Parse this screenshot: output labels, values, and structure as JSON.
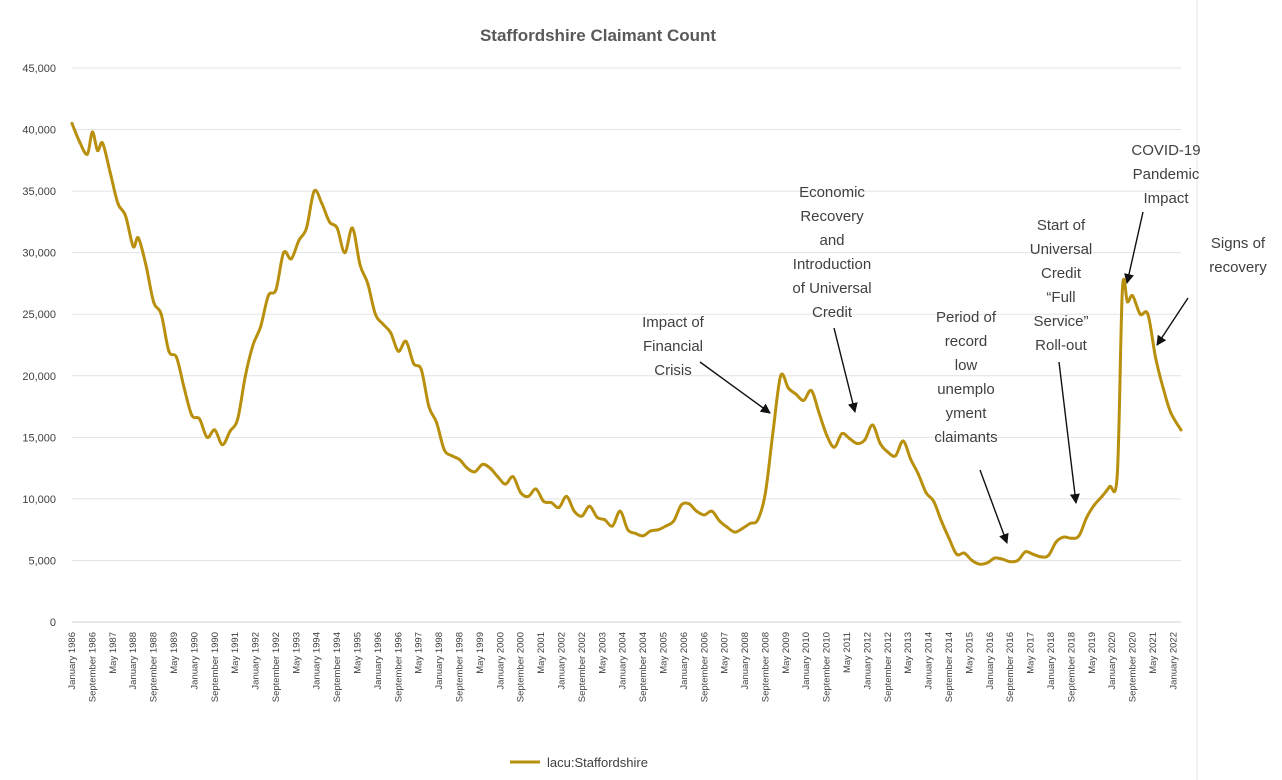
{
  "chart_data": {
    "type": "line",
    "title": "Staffordshire Claimant Count",
    "xlabel": "",
    "ylabel": "",
    "ylim": [
      0,
      45000
    ],
    "yticks": [
      0,
      5000,
      10000,
      15000,
      20000,
      25000,
      30000,
      35000,
      40000,
      45000
    ],
    "ytick_labels": [
      "0",
      "5,000",
      "10,000",
      "15,000",
      "20,000",
      "25,000",
      "30,000",
      "35,000",
      "40,000",
      "45,000"
    ],
    "xlim": [
      "January 1986",
      "April 2022"
    ],
    "xtick_labels": [
      "January 1986",
      "September 1986",
      "May 1987",
      "January 1988",
      "September 1988",
      "May 1989",
      "January 1990",
      "September 1990",
      "May 1991",
      "January 1992",
      "September 1992",
      "May 1993",
      "January 1994",
      "September 1994",
      "May 1995",
      "January 1996",
      "September 1996",
      "May 1997",
      "January 1998",
      "September 1998",
      "May 1999",
      "January 2000",
      "September 2000",
      "May 2001",
      "January 2002",
      "September 2002",
      "May 2003",
      "January 2004",
      "September 2004",
      "May 2005",
      "January 2006",
      "September 2006",
      "May 2007",
      "January 2008",
      "September 2008",
      "May 2009",
      "January 2010",
      "September 2010",
      "May 2011",
      "January 2012",
      "September 2012",
      "May 2013",
      "January 2014",
      "September 2014",
      "May 2015",
      "January 2016",
      "September 2016",
      "May 2017",
      "January 2018",
      "September 2018",
      "May 2019",
      "January 2020",
      "September 2020",
      "May 2021",
      "January 2022"
    ],
    "grid": true,
    "legend_position": "bottom",
    "series": [
      {
        "name": "lacu:Staffordshire",
        "color": "#b8900e",
        "points": [
          [
            "January 1986",
            40500
          ],
          [
            "April 1986",
            39000
          ],
          [
            "July 1986",
            38000
          ],
          [
            "September 1986",
            39800
          ],
          [
            "November 1986",
            38300
          ],
          [
            "January 1987",
            38900
          ],
          [
            "April 1987",
            36500
          ],
          [
            "July 1987",
            34000
          ],
          [
            "October 1987",
            33000
          ],
          [
            "January 1988",
            30500
          ],
          [
            "March 1988",
            31200
          ],
          [
            "June 1988",
            29000
          ],
          [
            "September 1988",
            26000
          ],
          [
            "December 1988",
            25000
          ],
          [
            "March 1989",
            22000
          ],
          [
            "June 1989",
            21500
          ],
          [
            "September 1989",
            19000
          ],
          [
            "December 1989",
            16800
          ],
          [
            "March 1990",
            16500
          ],
          [
            "June 1990",
            15000
          ],
          [
            "September 1990",
            15600
          ],
          [
            "December 1990",
            14400
          ],
          [
            "March 1991",
            15500
          ],
          [
            "June 1991",
            16500
          ],
          [
            "September 1991",
            20000
          ],
          [
            "December 1991",
            22500
          ],
          [
            "March 1992",
            24000
          ],
          [
            "June 1992",
            26500
          ],
          [
            "September 1992",
            27000
          ],
          [
            "December 1992",
            30000
          ],
          [
            "March 1993",
            29500
          ],
          [
            "June 1993",
            31000
          ],
          [
            "September 1993",
            32000
          ],
          [
            "December 1993",
            35000
          ],
          [
            "March 1994",
            34000
          ],
          [
            "June 1994",
            32500
          ],
          [
            "September 1994",
            32000
          ],
          [
            "December 1994",
            30000
          ],
          [
            "March 1995",
            32000
          ],
          [
            "June 1995",
            29000
          ],
          [
            "September 1995",
            27500
          ],
          [
            "December 1995",
            25000
          ],
          [
            "March 1996",
            24200
          ],
          [
            "June 1996",
            23500
          ],
          [
            "September 1996",
            22000
          ],
          [
            "December 1996",
            22800
          ],
          [
            "March 1997",
            21000
          ],
          [
            "June 1997",
            20500
          ],
          [
            "September 1997",
            17500
          ],
          [
            "December 1997",
            16200
          ],
          [
            "March 1998",
            14000
          ],
          [
            "June 1998",
            13500
          ],
          [
            "September 1998",
            13200
          ],
          [
            "December 1998",
            12500
          ],
          [
            "March 1999",
            12200
          ],
          [
            "June 1999",
            12800
          ],
          [
            "September 1999",
            12500
          ],
          [
            "December 1999",
            11800
          ],
          [
            "March 2000",
            11200
          ],
          [
            "June 2000",
            11800
          ],
          [
            "September 2000",
            10500
          ],
          [
            "December 2000",
            10200
          ],
          [
            "March 2001",
            10800
          ],
          [
            "June 2001",
            9800
          ],
          [
            "September 2001",
            9700
          ],
          [
            "December 2001",
            9300
          ],
          [
            "March 2002",
            10200
          ],
          [
            "June 2002",
            9000
          ],
          [
            "September 2002",
            8600
          ],
          [
            "December 2002",
            9400
          ],
          [
            "March 2003",
            8500
          ],
          [
            "June 2003",
            8300
          ],
          [
            "September 2003",
            7800
          ],
          [
            "December 2003",
            9000
          ],
          [
            "March 2004",
            7500
          ],
          [
            "June 2004",
            7200
          ],
          [
            "September 2004",
            7000
          ],
          [
            "December 2004",
            7400
          ],
          [
            "March 2005",
            7500
          ],
          [
            "June 2005",
            7800
          ],
          [
            "September 2005",
            8200
          ],
          [
            "December 2005",
            9500
          ],
          [
            "March 2006",
            9600
          ],
          [
            "June 2006",
            9000
          ],
          [
            "September 2006",
            8700
          ],
          [
            "December 2006",
            9000
          ],
          [
            "March 2007",
            8200
          ],
          [
            "June 2007",
            7700
          ],
          [
            "September 2007",
            7300
          ],
          [
            "December 2007",
            7600
          ],
          [
            "March 2008",
            8000
          ],
          [
            "June 2008",
            8300
          ],
          [
            "September 2008",
            10500
          ],
          [
            "December 2008",
            15500
          ],
          [
            "March 2009",
            20000
          ],
          [
            "June 2009",
            19000
          ],
          [
            "September 2009",
            18500
          ],
          [
            "December 2009",
            18000
          ],
          [
            "March 2010",
            18800
          ],
          [
            "June 2010",
            17000
          ],
          [
            "September 2010",
            15200
          ],
          [
            "December 2010",
            14200
          ],
          [
            "March 2011",
            15300
          ],
          [
            "June 2011",
            14900
          ],
          [
            "September 2011",
            14500
          ],
          [
            "December 2011",
            14800
          ],
          [
            "March 2012",
            16000
          ],
          [
            "June 2012",
            14500
          ],
          [
            "September 2012",
            13800
          ],
          [
            "December 2012",
            13500
          ],
          [
            "March 2013",
            14700
          ],
          [
            "June 2013",
            13200
          ],
          [
            "September 2013",
            12000
          ],
          [
            "December 2013",
            10500
          ],
          [
            "March 2014",
            9800
          ],
          [
            "June 2014",
            8200
          ],
          [
            "September 2014",
            6800
          ],
          [
            "December 2014",
            5500
          ],
          [
            "March 2015",
            5600
          ],
          [
            "June 2015",
            5000
          ],
          [
            "September 2015",
            4700
          ],
          [
            "December 2015",
            4800
          ],
          [
            "March 2016",
            5200
          ],
          [
            "June 2016",
            5100
          ],
          [
            "September 2016",
            4900
          ],
          [
            "December 2016",
            5000
          ],
          [
            "March 2017",
            5700
          ],
          [
            "June 2017",
            5500
          ],
          [
            "September 2017",
            5300
          ],
          [
            "December 2017",
            5400
          ],
          [
            "March 2018",
            6500
          ],
          [
            "June 2018",
            6900
          ],
          [
            "September 2018",
            6800
          ],
          [
            "December 2018",
            7000
          ],
          [
            "March 2019",
            8500
          ],
          [
            "June 2019",
            9500
          ],
          [
            "September 2019",
            10200
          ],
          [
            "December 2019",
            11000
          ],
          [
            "March 2020",
            12000
          ],
          [
            "May 2020",
            27000
          ],
          [
            "July 2020",
            26000
          ],
          [
            "September 2020",
            26500
          ],
          [
            "December 2020",
            25000
          ],
          [
            "March 2021",
            25000
          ],
          [
            "June 2021",
            21500
          ],
          [
            "September 2021",
            19000
          ],
          [
            "December 2021",
            17000
          ],
          [
            "April 2022",
            15600
          ]
        ]
      }
    ],
    "annotations": [
      {
        "text": [
          "Impact of",
          "Financial",
          "Crisis"
        ],
        "points_to": "October 2008"
      },
      {
        "text": [
          "Economic",
          "Recovery",
          "and",
          "Introduction",
          "of Universal",
          "Credit"
        ],
        "points_to": "June 2011"
      },
      {
        "text": [
          "Period of",
          "record",
          "low",
          "unemplo",
          "yment",
          "claimants"
        ],
        "points_to": "September 2016"
      },
      {
        "text": [
          "Start of",
          "Universal",
          "Credit",
          "“Full",
          "Service”",
          "Roll-out"
        ],
        "points_to": "September 2018"
      },
      {
        "text": [
          "COVID-19",
          "Pandemic",
          "Impact"
        ],
        "points_to": "May 2020"
      },
      {
        "text": [
          "Signs of",
          "recovery"
        ],
        "points_to": "June 2021"
      }
    ]
  }
}
